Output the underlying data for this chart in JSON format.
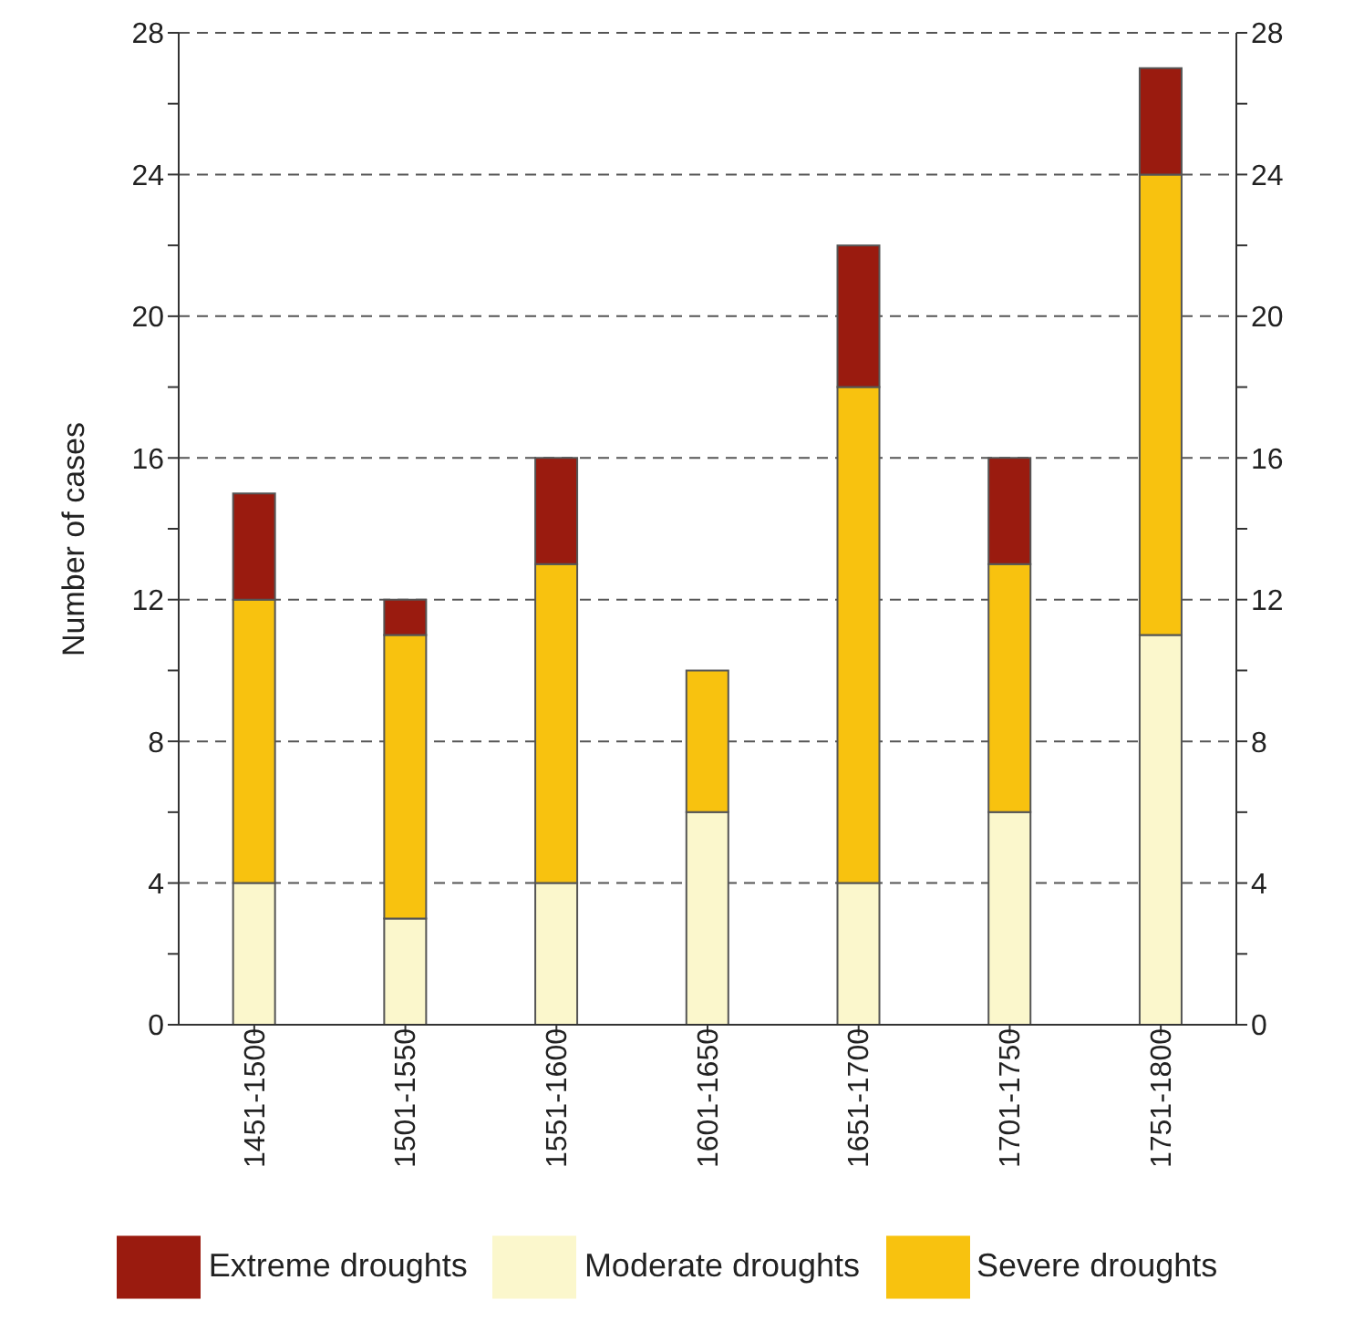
{
  "chart_data": {
    "type": "bar",
    "stacked": true,
    "ylabel": "Number of cases",
    "categories": [
      "1451-1500",
      "1501-1550",
      "1551-1600",
      "1601-1650",
      "1651-1700",
      "1701-1750",
      "1751-1800"
    ],
    "series": [
      {
        "name": "Moderate droughts",
        "color": "#fbf7cc",
        "values": [
          4,
          3,
          4,
          6,
          4,
          6,
          11
        ]
      },
      {
        "name": "Severe droughts",
        "color": "#f8c20f",
        "values": [
          8,
          8,
          9,
          4,
          14,
          7,
          13
        ]
      },
      {
        "name": "Extreme droughts",
        "color": "#9a1b0f",
        "values": [
          3,
          1,
          3,
          0,
          4,
          3,
          3
        ]
      }
    ],
    "ylim": [
      0,
      28
    ],
    "yticks": [
      0,
      {
        "value": 2,
        "label": null
      },
      4,
      {
        "value": 6,
        "label": null
      },
      8,
      {
        "value": 10,
        "label": null
      },
      12,
      {
        "value": 14,
        "label": null
      },
      16,
      {
        "value": 18,
        "label": null
      },
      20,
      {
        "value": 22,
        "label": null
      },
      24,
      {
        "value": 26,
        "label": null
      },
      28
    ],
    "y2lim": [
      0,
      28
    ],
    "y2ticks": [
      0,
      {
        "value": 2,
        "label": null
      },
      4,
      {
        "value": 6,
        "label": null
      },
      8,
      {
        "value": 10,
        "label": null
      },
      12,
      {
        "value": 14,
        "label": null
      },
      16,
      {
        "value": 18,
        "label": null
      },
      20,
      {
        "value": 22,
        "label": null
      },
      24,
      {
        "value": 26,
        "label": null
      },
      28
    ],
    "grid": "y",
    "legend": "bottom"
  }
}
